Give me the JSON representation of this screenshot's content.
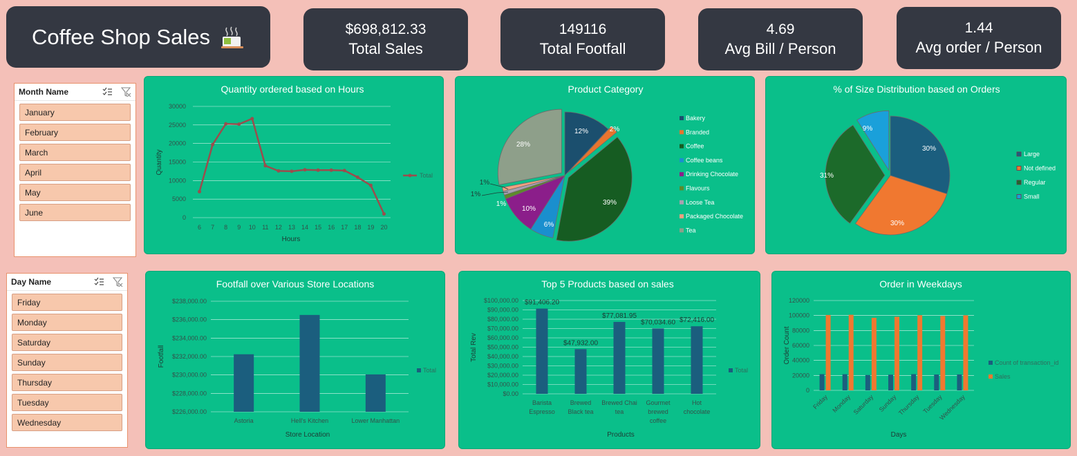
{
  "header": {
    "title": "Coffee Shop Sales",
    "icon": "coffee-cup-icon"
  },
  "kpis": [
    {
      "value": "$698,812.33",
      "label": "Total Sales"
    },
    {
      "value": "149116",
      "label": "Total Footfall"
    },
    {
      "value": "4.69",
      "label": "Avg Bill / Person"
    },
    {
      "value": "1.44",
      "label": "Avg order  / Person"
    }
  ],
  "month_slicer": {
    "title": "Month Name",
    "items": [
      "January",
      "February",
      "March",
      "April",
      "May",
      "June"
    ]
  },
  "day_slicer": {
    "title": "Day Name",
    "items": [
      "Friday",
      "Monday",
      "Saturday",
      "Sunday",
      "Thursday",
      "Tuesday",
      "Wednesday"
    ]
  },
  "colors": {
    "bar_blue": "#1B5E7E",
    "orange": "#F07830",
    "line": "#9B4D4D",
    "panel": "#0ABF8A"
  },
  "chart_data": [
    {
      "type": "line",
      "title": "Quantity ordered based on Hours",
      "xlabel": "Hours",
      "ylabel": "Quantity",
      "x": [
        6,
        7,
        8,
        9,
        10,
        11,
        12,
        13,
        14,
        15,
        16,
        17,
        18,
        19,
        20
      ],
      "series": [
        {
          "name": "Total",
          "values": [
            7000,
            19700,
            25300,
            25200,
            26700,
            14000,
            12600,
            12500,
            12900,
            12800,
            12800,
            12700,
            10900,
            8700,
            1000
          ]
        }
      ],
      "ylim": [
        0,
        30000
      ],
      "yticks": [
        "30000",
        "25000",
        "20000",
        "15000",
        "10000",
        "5000",
        "0"
      ]
    },
    {
      "type": "pie",
      "title": "Product Category",
      "labels": [
        "Bakery",
        "Branded",
        "Coffee",
        "Coffee beans",
        "Drinking Chocolate",
        "Flavours",
        "Loose Tea",
        "Packaged Chocolate",
        "Tea"
      ],
      "values": [
        12,
        2,
        39,
        6,
        10,
        1,
        1,
        1,
        28
      ],
      "value_labels": [
        "12%",
        "2%",
        "39%",
        "6%",
        "10%",
        "1%",
        "1%",
        "1%",
        "28%"
      ],
      "colors": [
        "#1B4F6E",
        "#E8742E",
        "#165C22",
        "#1A8FCE",
        "#8B1E8A",
        "#5E8A2A",
        "#A8A0B0",
        "#F0A080",
        "#8E9F8A"
      ]
    },
    {
      "type": "pie",
      "title": "% of Size Distribution based on Orders",
      "labels": [
        "Large",
        "Not defined",
        "Regular",
        "Small"
      ],
      "values": [
        30,
        30,
        31,
        9
      ],
      "value_labels": [
        "30%",
        "30%",
        "31%",
        "9%"
      ],
      "colors": [
        "#1B5E7E",
        "#F07830",
        "#1C6A2A",
        "#1AA0DA"
      ]
    },
    {
      "type": "bar",
      "title": "Footfall over Various Store Locations",
      "xlabel": "Store Location",
      "ylabel": "Footfall",
      "categories": [
        "Astoria",
        "Hell's Kitchen",
        "Lower Manhattan"
      ],
      "series": [
        {
          "name": "Total",
          "values": [
            232243.91,
            236511.17,
            230057.25
          ]
        }
      ],
      "ylim": [
        226000,
        238000
      ],
      "yticks": [
        "$238,000.00",
        "$236,000.00",
        "$234,000.00",
        "$232,000.00",
        "$230,000.00",
        "$228,000.00",
        "$226,000.00"
      ]
    },
    {
      "type": "bar",
      "title": "Top 5 Products based on sales",
      "xlabel": "Products",
      "ylabel": "Total Rev",
      "categories": [
        [
          "Barista",
          "Espresso"
        ],
        [
          "Brewed",
          "Black tea"
        ],
        [
          "Brewed Chai",
          "tea"
        ],
        [
          "Gourmet",
          "brewed",
          "coffee"
        ],
        [
          "Hot",
          "chocolate"
        ]
      ],
      "series": [
        {
          "name": "Total",
          "values": [
            91406.2,
            47932.0,
            77081.95,
            70034.6,
            72416.0
          ]
        }
      ],
      "data_labels": [
        "$91,406.20",
        "$47,932.00",
        "$77,081.95",
        "$70,034.60",
        "$72,416.00"
      ],
      "ylim": [
        0,
        100000
      ],
      "yticks": [
        "$100,000.00",
        "$90,000.00",
        "$80,000.00",
        "$70,000.00",
        "$60,000.00",
        "$50,000.00",
        "$40,000.00",
        "$30,000.00",
        "$20,000.00",
        "$10,000.00",
        "$0.00"
      ]
    },
    {
      "type": "bar",
      "title": "Order in Weekdays",
      "xlabel": "Days",
      "ylabel": "Order Count",
      "categories": [
        "Friday",
        "Monday",
        "Saturday",
        "Sunday",
        "Thursday",
        "Tuesday",
        "Wednesday"
      ],
      "series": [
        {
          "name": "Count of transaction_id",
          "values": [
            21700,
            21600,
            20500,
            21000,
            21700,
            21200,
            21300
          ]
        },
        {
          "name": "Sales",
          "values": [
            100700,
            101000,
            96900,
            98300,
            100400,
            99400,
            100300
          ]
        }
      ],
      "ylim": [
        0,
        120000
      ],
      "yticks": [
        "120000",
        "100000",
        "80000",
        "60000",
        "40000",
        "20000",
        "0"
      ]
    }
  ]
}
